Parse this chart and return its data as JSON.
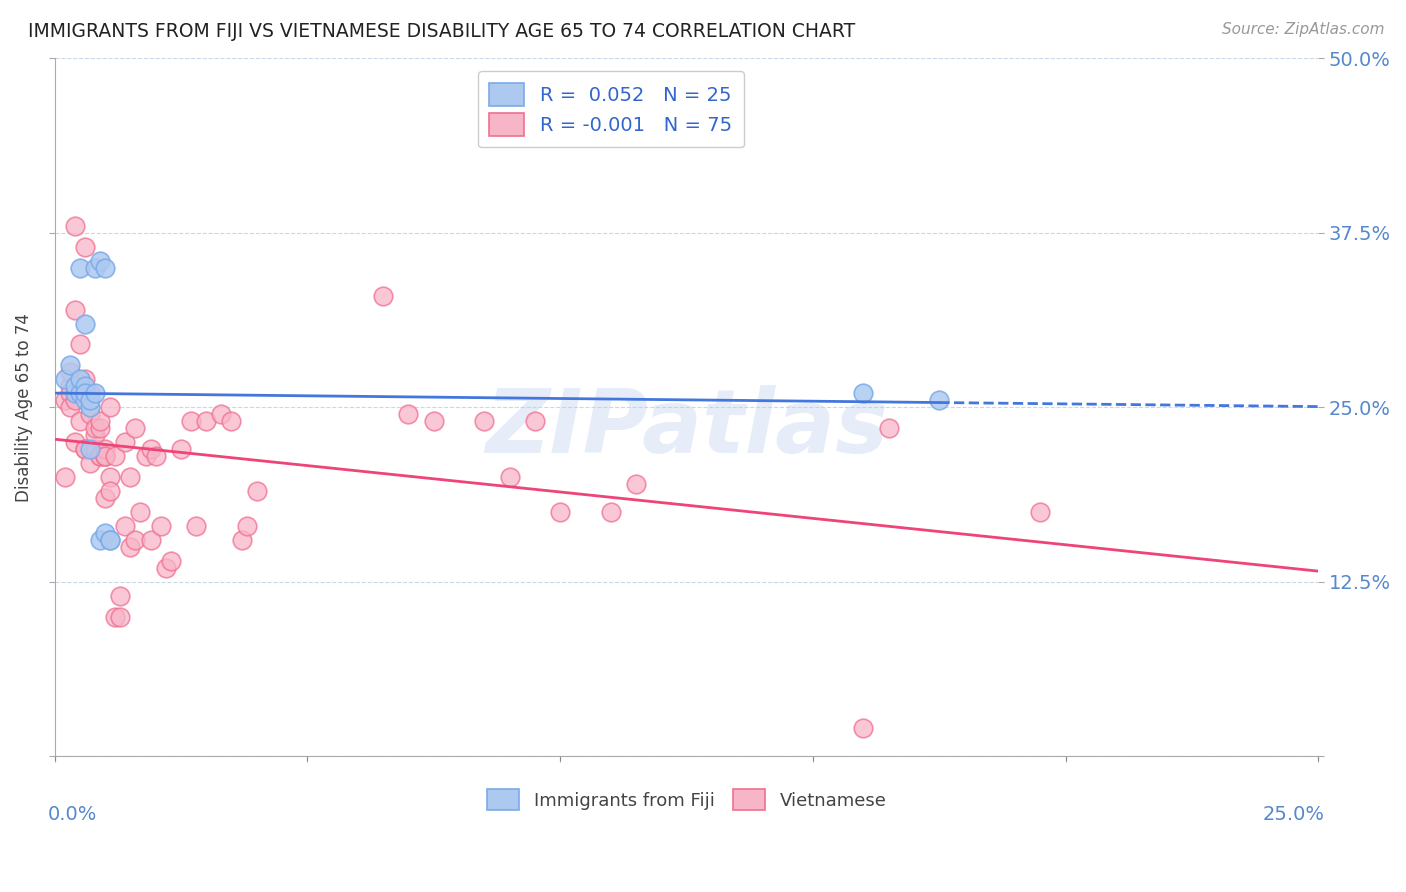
{
  "title": "IMMIGRANTS FROM FIJI VS VIETNAMESE DISABILITY AGE 65 TO 74 CORRELATION CHART",
  "source": "Source: ZipAtlas.com",
  "ylabel": "Disability Age 65 to 74",
  "ytick_values": [
    0.0,
    0.125,
    0.25,
    0.375,
    0.5
  ],
  "ytick_labels": [
    "",
    "12.5%",
    "25.0%",
    "37.5%",
    "50.0%"
  ],
  "xlim": [
    0.0,
    0.25
  ],
  "ylim": [
    0.0,
    0.5
  ],
  "legend_fiji_R": "0.052",
  "legend_fiji_N": "25",
  "legend_viet_R": "-0.001",
  "legend_viet_N": "75",
  "fiji_color": "#adc9f0",
  "viet_color": "#f7b5c8",
  "fiji_edge_color": "#7aaae8",
  "viet_edge_color": "#f07090",
  "fiji_line_color": "#4477dd",
  "viet_line_color": "#ee4477",
  "background_color": "#ffffff",
  "watermark": "ZIPatlas",
  "fiji_points": [
    [
      0.002,
      0.27
    ],
    [
      0.003,
      0.28
    ],
    [
      0.004,
      0.26
    ],
    [
      0.004,
      0.265
    ],
    [
      0.005,
      0.35
    ],
    [
      0.005,
      0.26
    ],
    [
      0.005,
      0.27
    ],
    [
      0.006,
      0.26
    ],
    [
      0.006,
      0.265
    ],
    [
      0.006,
      0.31
    ],
    [
      0.006,
      0.255
    ],
    [
      0.006,
      0.26
    ],
    [
      0.007,
      0.25
    ],
    [
      0.007,
      0.255
    ],
    [
      0.007,
      0.22
    ],
    [
      0.008,
      0.26
    ],
    [
      0.008,
      0.35
    ],
    [
      0.009,
      0.355
    ],
    [
      0.009,
      0.155
    ],
    [
      0.01,
      0.16
    ],
    [
      0.01,
      0.35
    ],
    [
      0.011,
      0.155
    ],
    [
      0.011,
      0.155
    ],
    [
      0.16,
      0.26
    ],
    [
      0.175,
      0.255
    ]
  ],
  "viet_points": [
    [
      0.002,
      0.255
    ],
    [
      0.002,
      0.2
    ],
    [
      0.003,
      0.265
    ],
    [
      0.003,
      0.26
    ],
    [
      0.003,
      0.25
    ],
    [
      0.003,
      0.275
    ],
    [
      0.004,
      0.255
    ],
    [
      0.004,
      0.225
    ],
    [
      0.004,
      0.38
    ],
    [
      0.004,
      0.32
    ],
    [
      0.005,
      0.295
    ],
    [
      0.005,
      0.24
    ],
    [
      0.005,
      0.26
    ],
    [
      0.006,
      0.365
    ],
    [
      0.006,
      0.27
    ],
    [
      0.006,
      0.26
    ],
    [
      0.006,
      0.22
    ],
    [
      0.006,
      0.22
    ],
    [
      0.007,
      0.21
    ],
    [
      0.007,
      0.245
    ],
    [
      0.007,
      0.26
    ],
    [
      0.008,
      0.22
    ],
    [
      0.008,
      0.23
    ],
    [
      0.008,
      0.235
    ],
    [
      0.009,
      0.215
    ],
    [
      0.009,
      0.235
    ],
    [
      0.009,
      0.215
    ],
    [
      0.009,
      0.24
    ],
    [
      0.01,
      0.215
    ],
    [
      0.01,
      0.215
    ],
    [
      0.01,
      0.22
    ],
    [
      0.01,
      0.215
    ],
    [
      0.01,
      0.185
    ],
    [
      0.011,
      0.2
    ],
    [
      0.011,
      0.19
    ],
    [
      0.011,
      0.25
    ],
    [
      0.012,
      0.215
    ],
    [
      0.012,
      0.1
    ],
    [
      0.013,
      0.115
    ],
    [
      0.013,
      0.1
    ],
    [
      0.014,
      0.165
    ],
    [
      0.014,
      0.225
    ],
    [
      0.015,
      0.2
    ],
    [
      0.015,
      0.15
    ],
    [
      0.016,
      0.235
    ],
    [
      0.016,
      0.155
    ],
    [
      0.017,
      0.175
    ],
    [
      0.018,
      0.215
    ],
    [
      0.019,
      0.22
    ],
    [
      0.019,
      0.155
    ],
    [
      0.02,
      0.215
    ],
    [
      0.021,
      0.165
    ],
    [
      0.022,
      0.135
    ],
    [
      0.023,
      0.14
    ],
    [
      0.025,
      0.22
    ],
    [
      0.027,
      0.24
    ],
    [
      0.028,
      0.165
    ],
    [
      0.03,
      0.24
    ],
    [
      0.033,
      0.245
    ],
    [
      0.035,
      0.24
    ],
    [
      0.037,
      0.155
    ],
    [
      0.038,
      0.165
    ],
    [
      0.04,
      0.19
    ],
    [
      0.065,
      0.33
    ],
    [
      0.07,
      0.245
    ],
    [
      0.075,
      0.24
    ],
    [
      0.085,
      0.24
    ],
    [
      0.09,
      0.2
    ],
    [
      0.095,
      0.24
    ],
    [
      0.1,
      0.175
    ],
    [
      0.11,
      0.175
    ],
    [
      0.115,
      0.195
    ],
    [
      0.16,
      0.02
    ],
    [
      0.165,
      0.235
    ],
    [
      0.195,
      0.175
    ]
  ]
}
